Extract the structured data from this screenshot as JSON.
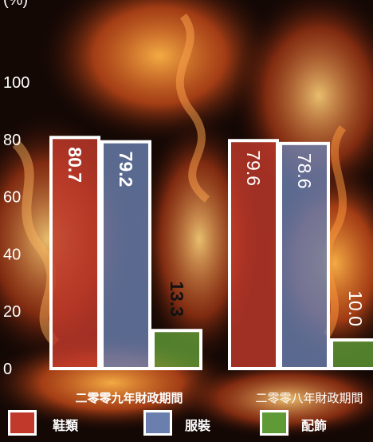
{
  "chart_data": {
    "type": "bar",
    "ylim": [
      0,
      100
    ],
    "yticks": [
      "0",
      "20",
      "40",
      "60",
      "80",
      "100"
    ],
    "categories": [
      "二零零九年財政期間",
      "二零零八年財政期間"
    ],
    "series": [
      {
        "name": "鞋類",
        "color": "#c0392b",
        "values": [
          80.7,
          79.6
        ],
        "labels": [
          "80.7",
          "79.6"
        ]
      },
      {
        "name": "服裝",
        "color": "#6a7fae",
        "values": [
          79.2,
          78.6
        ],
        "labels": [
          "79.2",
          "78.6"
        ]
      },
      {
        "name": "配飾",
        "color": "#5f9a36",
        "values": [
          13.3,
          10.0
        ],
        "labels": [
          "13.3",
          "10.0"
        ]
      }
    ],
    "legend": [
      "鞋類",
      "服裝",
      "配飾"
    ],
    "ylabel_partial": "(%)"
  }
}
